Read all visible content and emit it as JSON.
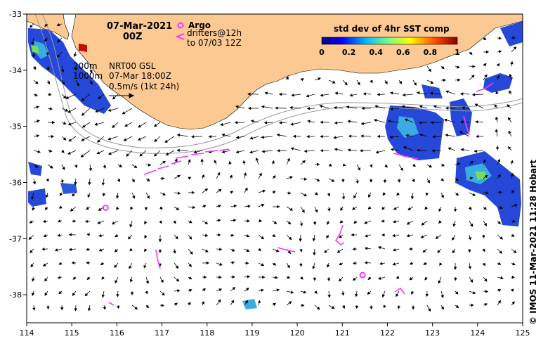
{
  "map": {
    "title_date": "07-Mar-2021",
    "title_time": "00Z",
    "legend_argo": "Argo",
    "legend_drifters_1": "drifters@12h",
    "legend_drifters_2": "to 07/03 12Z",
    "isobath_1": "200m",
    "isobath_2": "1000m",
    "product_line_1": "NRT00 GSL",
    "product_line_2": "07-Mar 18:00Z",
    "product_line_3": "0.5m/s (1kt 24h)",
    "credit": "© IMOS 11-Mar-2021 11:28 Hobart",
    "colors": {
      "land": "#fdc993",
      "drifter": "#ff33ff",
      "vector": "#000000",
      "isobath": "#999999"
    }
  },
  "colorbar": {
    "title": "std dev of 4hr SST comp",
    "ticks": [
      "0",
      "0.2",
      "0.4",
      "0.6",
      "0.8",
      "1"
    ],
    "range": [
      0,
      1
    ]
  },
  "axes": {
    "x_ticks": [
      "114",
      "115",
      "116",
      "117",
      "118",
      "119",
      "120",
      "121",
      "122",
      "123",
      "124",
      "125"
    ],
    "y_ticks": [
      "-33",
      "-34",
      "-35",
      "-36",
      "-37",
      "-38"
    ],
    "xlim": [
      114,
      125
    ],
    "ylim": [
      -38.5,
      -33
    ]
  },
  "argo_floats": [
    {
      "lon": 115.75,
      "lat": -36.45
    },
    {
      "lon": 121.45,
      "lat": -37.65
    }
  ]
}
